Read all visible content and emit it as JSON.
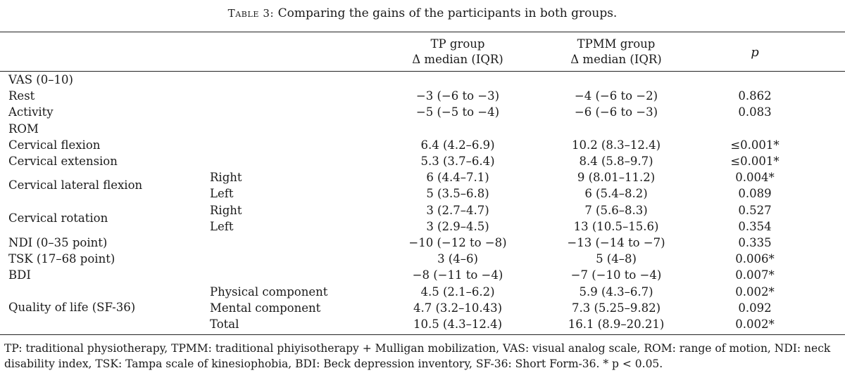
{
  "caption": {
    "label": "Table 3:",
    "text": "Comparing the gains of the participants in both groups."
  },
  "header": {
    "tp_line1": "TP group",
    "tp_line2": "Δ median (IQR)",
    "tpmm_line1": "TPMM group",
    "tpmm_line2": "Δ median (IQR)",
    "p": "p"
  },
  "rows": [
    {
      "c1": "VAS (0–10)",
      "c2": "",
      "tp": "",
      "tpmm": "",
      "p": ""
    },
    {
      "c1": "Rest",
      "c2": "",
      "tp": "−3 (−6 to −3)",
      "tpmm": "−4 (−6 to −2)",
      "p": "0.862"
    },
    {
      "c1": "Activity",
      "c2": "",
      "tp": "−5 (−5 to −4)",
      "tpmm": "−6 (−6 to −3)",
      "p": "0.083"
    },
    {
      "c1": "ROM",
      "c2": "",
      "tp": "",
      "tpmm": "",
      "p": ""
    },
    {
      "c1": "Cervical flexion",
      "c2": "",
      "tp": "6.4 (4.2–6.9)",
      "tpmm": "10.2 (8.3–12.4)",
      "p": "≤0.001*"
    },
    {
      "c1": "Cervical extension",
      "c2": "",
      "tp": "5.3 (3.7–6.4)",
      "tpmm": "8.4 (5.8–9.7)",
      "p": "≤0.001*"
    },
    {
      "c1": "",
      "c2": "Right",
      "tp": "6 (4.4–7.1)",
      "tpmm": "9 (8.01–11.2)",
      "p": "0.004*"
    },
    {
      "c1": "",
      "c2": "Left",
      "tp": "5 (3.5–6.8)",
      "tpmm": "6 (5.4–8.2)",
      "p": "0.089"
    },
    {
      "c1": "",
      "c2": "Right",
      "tp": "3 (2.7–4.7)",
      "tpmm": "7 (5.6–8.3)",
      "p": "0.527"
    },
    {
      "c1": "",
      "c2": "Left",
      "tp": "3 (2.9–4.5)",
      "tpmm": "13 (10.5–15.6)",
      "p": "0.354"
    },
    {
      "c1": "NDI (0–35 point)",
      "c2": "",
      "tp": "−10 (−12 to −8)",
      "tpmm": "−13 (−14 to −7)",
      "p": "0.335"
    },
    {
      "c1": "TSK (17–68 point)",
      "c2": "",
      "tp": "3 (4–6)",
      "tpmm": "5 (4–8)",
      "p": "0.006*"
    },
    {
      "c1": "BDI",
      "c2": "",
      "tp": "−8 (−11 to −4)",
      "tpmm": "−7 (−10 to −4)",
      "p": "0.007*"
    },
    {
      "c1": "",
      "c2": "Physical component",
      "tp": "4.5 (2.1–6.2)",
      "tpmm": "5.9 (4.3–6.7)",
      "p": "0.002*"
    },
    {
      "c1": "",
      "c2": "Mental component",
      "tp": "4.7 (3.2–10.43)",
      "tpmm": "7.3 (5.25–9.82)",
      "p": "0.092"
    },
    {
      "c1": "",
      "c2": "Total",
      "tp": "10.5 (4.3–12.4)",
      "tpmm": "16.1 (8.9–20.21)",
      "p": "0.002*"
    }
  ],
  "spanning_labels": {
    "lateral_flexion": "Cervical lateral flexion",
    "rotation": "Cervical rotation",
    "quality_of_life": "Quality of life (SF-36)"
  },
  "footnote": "TP: traditional physiotherapy, TPMM: traditional phiyisotherapy + Mulligan mobilization, VAS: visual analog scale, ROM: range of motion, NDI: neck disability index, TSK: Tampa scale of kinesiophobia, BDI: Beck depression inventory, SF-36: Short Form-36.",
  "footnote_sig": "* p < 0.05."
}
